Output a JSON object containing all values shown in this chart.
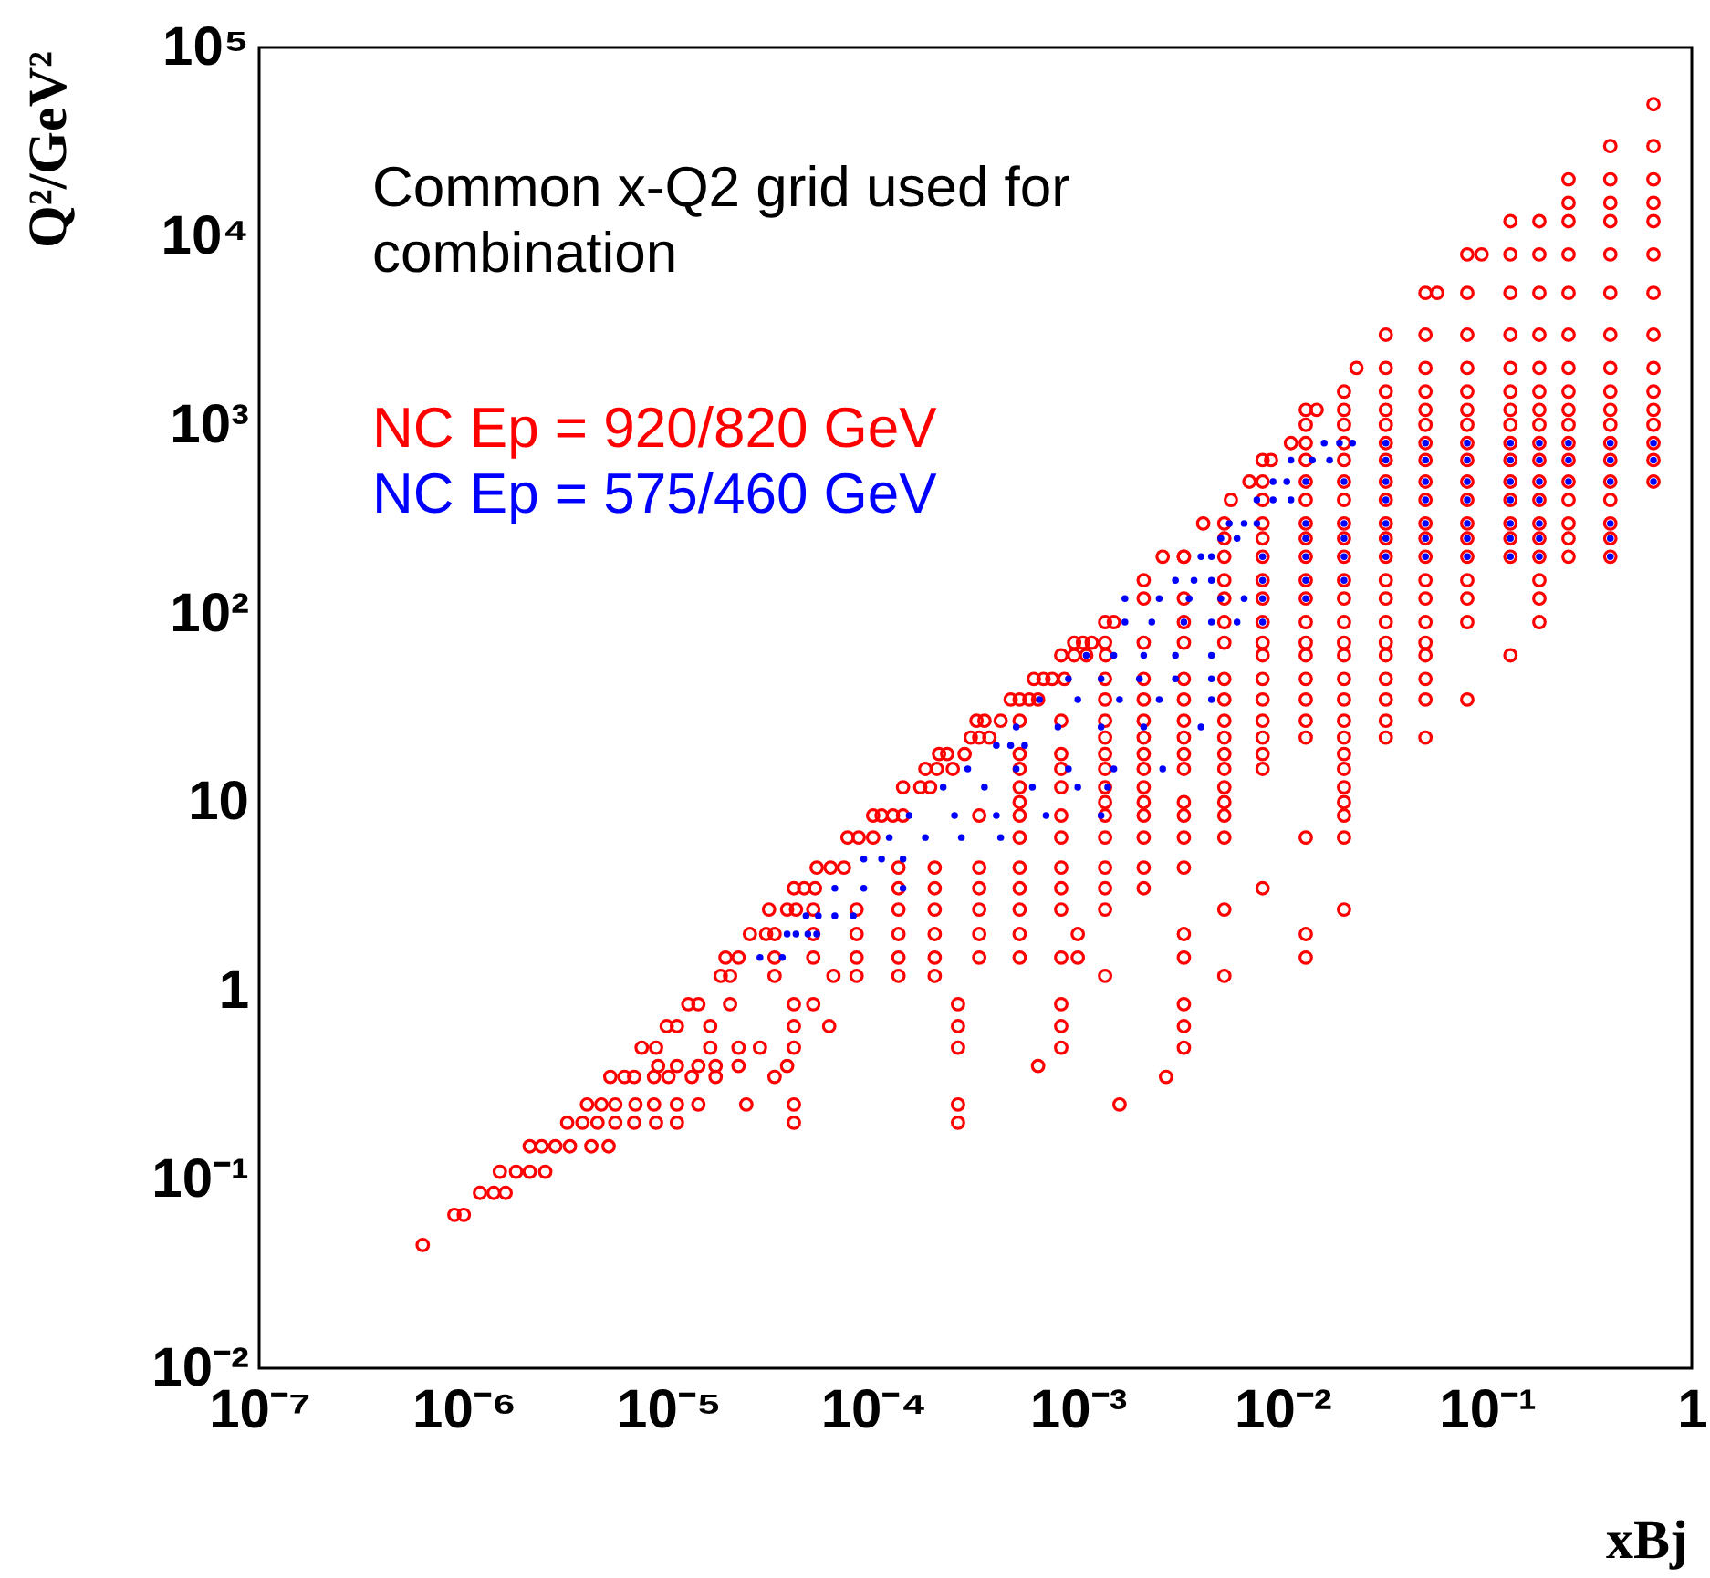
{
  "chart_data": {
    "type": "scatter",
    "xlabel": "xBj",
    "ylabel": "Q²/GeV²",
    "log": "xy",
    "grid": false,
    "marker": "circle",
    "annotations": [
      "Common x-Q2 grid used for\ncombination"
    ],
    "xlim": [
      1e-07,
      1
    ],
    "ylim": [
      0.01,
      100000
    ],
    "xticks": [
      {
        "value": 1e-07,
        "label": "10⁻⁷"
      },
      {
        "value": 1e-06,
        "label": "10⁻⁶"
      },
      {
        "value": 1e-05,
        "label": "10⁻⁵"
      },
      {
        "value": 0.0001,
        "label": "10⁻⁴"
      },
      {
        "value": 0.001,
        "label": "10⁻³"
      },
      {
        "value": 0.01,
        "label": "10⁻²"
      },
      {
        "value": 0.1,
        "label": "10⁻¹"
      },
      1
    ],
    "yticks": [
      {
        "value": 0.01,
        "label": "10⁻²"
      },
      {
        "value": 0.1,
        "label": "10⁻¹"
      },
      1,
      10,
      {
        "value": 100,
        "label": "10²"
      },
      {
        "value": 1000,
        "label": "10³"
      },
      {
        "value": 10000,
        "label": "10⁴"
      },
      {
        "value": 100000,
        "label": "10⁵"
      }
    ],
    "series": [
      {
        "name": "NC Ep = 920/820 GeV",
        "color": "#ff0000",
        "x": [
          6.3e-07,
          9e-07,
          1e-06,
          1.2e-06,
          1.4e-06,
          1.6e-06,
          1.5e-06,
          1.8e-06,
          2.1e-06,
          2.5e-06,
          2.1e-06,
          2.4e-06,
          2.8e-06,
          3.3e-06,
          4.2e-06,
          5.1e-06,
          3.2e-06,
          3.8e-06,
          4.5e-06,
          5.5e-06,
          6.8e-06,
          8.7e-06,
          1.1e-05,
          4.1e-05,
          4e-06,
          4.7e-06,
          5.5e-06,
          6.9e-06,
          8.5e-06,
          1.1e-05,
          1.4e-05,
          2.4e-05,
          4.1e-05,
          5.2e-06,
          6.1e-06,
          6.8e-06,
          8.5e-06,
          1e-05,
          1.3e-05,
          1.7e-05,
          3.3e-05,
          8.9e-06,
          1.1e-05,
          1.4e-05,
          1.7e-05,
          2.2e-05,
          3.8e-05,
          7.4e-06,
          8.7e-06,
          1.6e-05,
          2.2e-05,
          2.8e-05,
          4.1e-05,
          9.8e-06,
          1.1e-05,
          1.6e-05,
          4.1e-05,
          6.1e-05,
          1.25e-05,
          1.4e-05,
          2e-05,
          4.1e-05,
          5.1e-05,
          1.8e-05,
          2e-05,
          3.3e-05,
          6.4e-05,
          1.9e-05,
          2.2e-05,
          3.3e-05,
          5.1e-05,
          2.5e-05,
          3e-05,
          3.3e-05,
          5.1e-05,
          3.1e-05,
          3.8e-05,
          4.2e-05,
          5.1e-05,
          4.1e-05,
          4.6e-05,
          5.2e-05,
          5.3e-05,
          6.2e-05,
          7.2e-05,
          7.5e-05,
          8.5e-05,
          0.0001,
          0.0001,
          0.00011,
          0.000125,
          0.00014,
          0.00014,
          0.00017,
          0.00019,
          0.00018,
          0.000205,
          0.000245,
          0.00021,
          0.00023,
          0.00028,
          0.0003,
          0.00033,
          0.00037,
          0.00032,
          0.00035,
          0.00042,
          0.00047,
          0.00052,
          0.00058,
          0.00064,
          0.00061,
          0.00068,
          0.00075,
          0.00086,
          0.00083,
          0.00096,
          0.0011,
          0.00137,
          0.00096,
          0.00106,
          0.00117,
          0.00136,
          0.00136,
          0.0015,
          8.3e-05,
          8.3e-05,
          8.3e-05,
          8.3e-05,
          0.000133,
          0.000133,
          0.000133,
          0.000133,
          0.000133,
          0.000133,
          0.0002,
          0.0002,
          0.0002,
          0.0002,
          0.0002,
          0.0002,
          0.00033,
          0.00033,
          0.00033,
          0.00033,
          0.00033,
          0.00033,
          0.00026,
          0.00026,
          0.00026,
          0.00026,
          0.00026,
          0.00052,
          0.00052,
          0.00052,
          0.00052,
          0.00052,
          0.00052,
          0.00052,
          0.00052,
          0.00052,
          0.00052,
          0.00052,
          0.00052,
          0.00083,
          0.00083,
          0.00083,
          0.00083,
          0.00083,
          0.00083,
          0.00083,
          0.00083,
          0.00083,
          0.00083,
          0.00083,
          0.00083,
          0.00083,
          0.00136,
          0.00136,
          0.00136,
          0.00136,
          0.00136,
          0.00136,
          0.00136,
          0.00136,
          0.00136,
          0.00136,
          0.00136,
          0.00136,
          0.00136,
          0.00136,
          0.0021,
          0.0021,
          0.0021,
          0.0021,
          0.0021,
          0.0021,
          0.0021,
          0.0021,
          0.0021,
          0.0021,
          0.0021,
          0.0021,
          0.0021,
          0.0021,
          0.0021,
          0.0033,
          0.0033,
          0.0033,
          0.0033,
          0.0033,
          0.0033,
          0.0033,
          0.0033,
          0.0033,
          0.0033,
          0.0033,
          0.0033,
          0.0033,
          0.0033,
          0.0033,
          0.0033,
          0.0033,
          0.0033,
          0.0033,
          0.0052,
          0.0052,
          0.0052,
          0.0052,
          0.0052,
          0.0052,
          0.0052,
          0.0052,
          0.0052,
          0.0052,
          0.0052,
          0.0052,
          0.0052,
          0.0052,
          0.0052,
          0.0052,
          0.0052,
          0.0052,
          0.0052,
          0.0027,
          0.0016,
          0.00064,
          0.001,
          0.001,
          0.0026,
          0.0033,
          0.0041,
          0.0056,
          0.0069,
          0.0088,
          0.011,
          0.0147,
          0.023,
          0.057,
          0.094,
          0.008,
          0.008,
          0.008,
          0.008,
          0.008,
          0.008,
          0.008,
          0.008,
          0.008,
          0.008,
          0.008,
          0.008,
          0.008,
          0.008,
          0.008,
          0.008,
          0.008,
          0.008,
          0.013,
          0.013,
          0.013,
          0.013,
          0.013,
          0.013,
          0.013,
          0.013,
          0.013,
          0.013,
          0.013,
          0.013,
          0.013,
          0.013,
          0.013,
          0.013,
          0.013,
          0.013,
          0.013,
          0.013,
          0.013,
          0.02,
          0.02,
          0.02,
          0.02,
          0.02,
          0.02,
          0.02,
          0.02,
          0.02,
          0.02,
          0.02,
          0.02,
          0.02,
          0.02,
          0.02,
          0.02,
          0.02,
          0.02,
          0.02,
          0.02,
          0.02,
          0.02,
          0.02,
          0.02,
          0.02,
          0.02,
          0.032,
          0.032,
          0.032,
          0.032,
          0.032,
          0.032,
          0.032,
          0.032,
          0.032,
          0.032,
          0.032,
          0.032,
          0.032,
          0.032,
          0.032,
          0.032,
          0.032,
          0.032,
          0.032,
          0.032,
          0.032,
          0.05,
          0.05,
          0.05,
          0.05,
          0.05,
          0.05,
          0.05,
          0.05,
          0.05,
          0.05,
          0.05,
          0.05,
          0.05,
          0.05,
          0.05,
          0.05,
          0.05,
          0.05,
          0.05,
          0.05,
          0.05,
          0.08,
          0.08,
          0.08,
          0.08,
          0.08,
          0.08,
          0.08,
          0.08,
          0.08,
          0.08,
          0.08,
          0.08,
          0.08,
          0.08,
          0.08,
          0.08,
          0.08,
          0.08,
          0.13,
          0.13,
          0.13,
          0.13,
          0.13,
          0.13,
          0.13,
          0.13,
          0.13,
          0.13,
          0.13,
          0.13,
          0.13,
          0.13,
          0.13,
          0.13,
          0.18,
          0.18,
          0.18,
          0.18,
          0.18,
          0.18,
          0.18,
          0.18,
          0.18,
          0.18,
          0.18,
          0.18,
          0.18,
          0.18,
          0.18,
          0.18,
          0.18,
          0.18,
          0.25,
          0.25,
          0.25,
          0.25,
          0.25,
          0.25,
          0.25,
          0.25,
          0.25,
          0.25,
          0.25,
          0.25,
          0.25,
          0.25,
          0.25,
          0.25,
          0.25,
          0.4,
          0.4,
          0.4,
          0.4,
          0.4,
          0.4,
          0.4,
          0.4,
          0.4,
          0.4,
          0.4,
          0.4,
          0.4,
          0.4,
          0.4,
          0.4,
          0.4,
          0.4,
          0.65,
          0.65,
          0.65,
          0.65,
          0.65,
          0.65,
          0.65,
          0.65,
          0.65,
          0.65,
          0.65,
          0.65,
          0.65,
          0.65,
          0.65
        ],
        "values": [
          0.045,
          0.065,
          0.065,
          0.085,
          0.085,
          0.085,
          0.11,
          0.11,
          0.11,
          0.11,
          0.15,
          0.15,
          0.15,
          0.15,
          0.15,
          0.15,
          0.2,
          0.2,
          0.2,
          0.2,
          0.2,
          0.2,
          0.2,
          0.2,
          0.25,
          0.25,
          0.25,
          0.25,
          0.25,
          0.25,
          0.25,
          0.25,
          0.25,
          0.35,
          0.35,
          0.35,
          0.35,
          0.35,
          0.35,
          0.35,
          0.35,
          0.4,
          0.4,
          0.4,
          0.4,
          0.4,
          0.4,
          0.5,
          0.5,
          0.5,
          0.5,
          0.5,
          0.5,
          0.65,
          0.65,
          0.65,
          0.65,
          0.65,
          0.85,
          0.85,
          0.85,
          0.85,
          0.85,
          1.2,
          1.2,
          1.2,
          1.2,
          1.5,
          1.5,
          1.5,
          1.5,
          2,
          2,
          2,
          2,
          2.7,
          2.7,
          2.7,
          2.7,
          3.5,
          3.5,
          3.5,
          4.5,
          4.5,
          4.5,
          6.5,
          6.5,
          6.5,
          8.5,
          8.5,
          8.5,
          8.5,
          12,
          12,
          12,
          15,
          15,
          15,
          18,
          18,
          18,
          22,
          22,
          22,
          27,
          27,
          27,
          35,
          35,
          35,
          35,
          45,
          45,
          45,
          45,
          60,
          60,
          60,
          60,
          70,
          70,
          70,
          70,
          90,
          90,
          2.7,
          2,
          1.5,
          1.2,
          4.5,
          3.5,
          2.7,
          2,
          1.5,
          1.2,
          4.5,
          3.5,
          2.7,
          2,
          1.5,
          1.2,
          8.5,
          4.5,
          3.5,
          2.7,
          2,
          1.5,
          0.85,
          0.65,
          0.5,
          0.25,
          0.2,
          27,
          18,
          15,
          12,
          10,
          8.5,
          6.5,
          4.5,
          3.5,
          2.7,
          2,
          1.5,
          27,
          18,
          15,
          12,
          8.5,
          6.5,
          4.5,
          3.5,
          2.7,
          1.5,
          0.85,
          0.65,
          0.5,
          45,
          35,
          27,
          22,
          18,
          15,
          12,
          10,
          8.5,
          6.5,
          4.5,
          3.5,
          2.7,
          1.2,
          150,
          120,
          70,
          45,
          35,
          27,
          22,
          18,
          15,
          12,
          10,
          8.5,
          6.5,
          4.5,
          3.5,
          200,
          120,
          90,
          70,
          45,
          35,
          27,
          22,
          18,
          15,
          10,
          8.5,
          6.5,
          4.5,
          2,
          1.5,
          0.85,
          0.65,
          0.5,
          300,
          250,
          200,
          150,
          120,
          90,
          70,
          45,
          35,
          27,
          22,
          18,
          15,
          12,
          10,
          8.5,
          6.5,
          2.7,
          1.2,
          0.35,
          0.25,
          0.4,
          2,
          1.5,
          200,
          200,
          300,
          400,
          500,
          650,
          800,
          1200,
          2000,
          5000,
          8000,
          650,
          500,
          400,
          300,
          250,
          200,
          150,
          120,
          90,
          70,
          60,
          45,
          35,
          27,
          22,
          18,
          15,
          3.5,
          1200,
          1000,
          800,
          650,
          500,
          400,
          300,
          250,
          200,
          150,
          120,
          90,
          70,
          60,
          45,
          35,
          27,
          22,
          6.5,
          2,
          1.5,
          1500,
          1200,
          1000,
          800,
          650,
          500,
          400,
          300,
          250,
          200,
          150,
          120,
          90,
          70,
          60,
          45,
          35,
          27,
          22,
          18,
          15,
          12,
          10,
          8.5,
          6.5,
          2.7,
          3000,
          2000,
          1500,
          1200,
          1000,
          800,
          650,
          500,
          400,
          300,
          250,
          200,
          150,
          120,
          90,
          70,
          60,
          45,
          35,
          27,
          22,
          5000,
          3000,
          2000,
          1500,
          1200,
          1000,
          800,
          650,
          500,
          400,
          300,
          250,
          200,
          150,
          120,
          90,
          70,
          60,
          45,
          35,
          22,
          8000,
          5000,
          3000,
          2000,
          1500,
          1200,
          1000,
          800,
          650,
          500,
          400,
          300,
          250,
          200,
          150,
          120,
          90,
          35,
          12000,
          8000,
          5000,
          3000,
          2000,
          1500,
          1200,
          1000,
          800,
          650,
          500,
          400,
          300,
          250,
          200,
          60,
          12000,
          8000,
          5000,
          3000,
          2000,
          1500,
          1200,
          1000,
          800,
          650,
          500,
          400,
          300,
          250,
          200,
          150,
          120,
          90,
          20000,
          15000,
          12000,
          8000,
          5000,
          3000,
          2000,
          1500,
          1200,
          1000,
          800,
          650,
          500,
          400,
          300,
          250,
          200,
          30000,
          20000,
          15000,
          12000,
          8000,
          5000,
          3000,
          2000,
          1500,
          1200,
          1000,
          800,
          650,
          500,
          400,
          300,
          250,
          200,
          50000,
          30000,
          20000,
          15000,
          12000,
          8000,
          5000,
          3000,
          2000,
          1500,
          1200,
          1000,
          800,
          650,
          500
        ]
      },
      {
        "name": "NC Ep = 575/460 GeV",
        "color": "#0000ff",
        "x": [
          0.016,
          0.019,
          0.022,
          0.032,
          0.05,
          0.08,
          0.13,
          0.18,
          0.25,
          0.4,
          0.65,
          0.011,
          0.014,
          0.017,
          0.032,
          0.05,
          0.08,
          0.13,
          0.18,
          0.25,
          0.4,
          0.65,
          0.009,
          0.0105,
          0.013,
          0.02,
          0.032,
          0.05,
          0.08,
          0.13,
          0.18,
          0.25,
          0.4,
          0.65,
          0.0075,
          0.009,
          0.011,
          0.032,
          0.05,
          0.08,
          0.13,
          0.18,
          0.0055,
          0.0065,
          0.0075,
          0.013,
          0.02,
          0.032,
          0.05,
          0.08,
          0.13,
          0.18,
          0.4,
          0.005,
          0.006,
          0.013,
          0.02,
          0.032,
          0.05,
          0.08,
          0.13,
          0.18,
          0.4,
          0.004,
          0.0045,
          0.008,
          0.013,
          0.02,
          0.032,
          0.05,
          0.08,
          0.13,
          0.18,
          0.4,
          0.003,
          0.0037,
          0.0045,
          0.008,
          0.013,
          0.02,
          0.0017,
          0.0025,
          0.0035,
          0.005,
          0.0065,
          0.008,
          0.013,
          0.0017,
          0.0023,
          0.0033,
          0.0045,
          0.006,
          0.008,
          0.0011,
          0.0015,
          0.0021,
          0.003,
          0.0045,
          0.0009,
          0.0013,
          0.002,
          0.003,
          0.0045,
          0.00065,
          0.001,
          0.0016,
          0.0025,
          0.0045,
          0.0005,
          0.0008,
          0.0013,
          0.0021,
          0.004,
          0.0004,
          0.00047,
          0.00055,
          0.00029,
          0.0005,
          0.0009,
          0.0015,
          0.0026,
          0.00022,
          0.00035,
          0.0006,
          0.001,
          0.0014,
          0.00015,
          0.00025,
          0.0004,
          0.0007,
          0.0013,
          0.00012,
          0.00018,
          0.00027,
          0.00042,
          9e-05,
          0.00011,
          0.00014,
          6.5e-05,
          9e-05,
          0.00014,
          4.7e-05,
          5.4e-05,
          6.5e-05,
          8e-05,
          3.8e-05,
          4.2e-05,
          4.8e-05,
          5.3e-05,
          2.8e-05,
          3.6e-05
        ],
        "values": [
          800,
          800,
          800,
          800,
          800,
          800,
          800,
          800,
          800,
          800,
          800,
          650,
          650,
          650,
          650,
          650,
          650,
          650,
          650,
          650,
          650,
          650,
          500,
          500,
          500,
          500,
          500,
          500,
          500,
          500,
          500,
          500,
          500,
          500,
          400,
          400,
          400,
          400,
          400,
          400,
          400,
          400,
          300,
          300,
          300,
          300,
          300,
          300,
          300,
          300,
          300,
          300,
          300,
          250,
          250,
          250,
          250,
          250,
          250,
          250,
          250,
          250,
          250,
          200,
          200,
          200,
          200,
          200,
          200,
          200,
          200,
          200,
          200,
          200,
          150,
          150,
          150,
          150,
          150,
          150,
          120,
          120,
          120,
          120,
          120,
          120,
          120,
          90,
          90,
          90,
          90,
          90,
          90,
          60,
          60,
          60,
          60,
          60,
          45,
          45,
          45,
          45,
          45,
          35,
          35,
          35,
          35,
          35,
          25,
          25,
          25,
          25,
          25,
          20,
          20,
          20,
          15,
          15,
          15,
          15,
          15,
          12,
          12,
          12,
          12,
          12,
          8.5,
          8.5,
          8.5,
          8.5,
          8.5,
          6.5,
          6.5,
          6.5,
          6.5,
          5,
          5,
          5,
          3.5,
          3.5,
          3.5,
          2.5,
          2.5,
          2.5,
          2.5,
          2,
          2,
          2,
          2,
          1.5,
          1.5
        ]
      }
    ]
  }
}
